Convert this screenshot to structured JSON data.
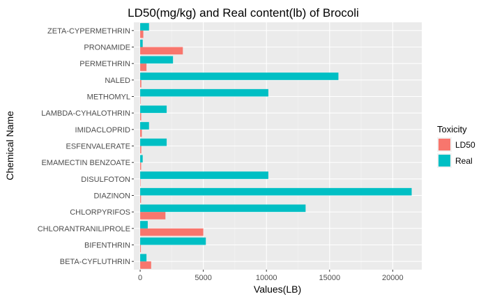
{
  "chart_data": {
    "type": "bar",
    "orientation": "horizontal",
    "title": "LD50(mg/kg) and Real content(lb) of Brocoli",
    "xlabel": "Values(LB)",
    "ylabel": "Chemical Name",
    "xlim": [
      -500,
      22300
    ],
    "xticks": [
      0,
      5000,
      10000,
      15000,
      20000
    ],
    "categories": [
      "BETA-CYFLUTHRIN",
      "BIFENTHRIN",
      "CHLORANTRANILIPROLE",
      "CHLORPYRIFOS",
      "DIAZINON",
      "DISULFOTON",
      "EMAMECTIN BENZOATE",
      "ESFENVALERATE",
      "IMIDACLOPRID",
      "LAMBDA-CYHALOTHRIN",
      "METHOMYL",
      "NALED",
      "PERMETHRIN",
      "PRONAMIDE",
      "ZETA-CYPERMETHRIN"
    ],
    "series": [
      {
        "name": "LD50",
        "color": "#F8766D",
        "values": [
          869,
          55,
          5000,
          2000,
          66,
          2,
          76,
          87,
          131,
          79,
          17,
          92,
          500,
          3380,
          250
        ]
      },
      {
        "name": "Real",
        "color": "#00BFC4",
        "values": [
          500,
          5200,
          600,
          13100,
          21500,
          10150,
          200,
          2100,
          700,
          2100,
          10150,
          15700,
          2600,
          200,
          700
        ]
      }
    ],
    "legend": {
      "title": "Toxicity",
      "position": "right"
    },
    "grid": true,
    "panel_background": "#EBEBEB"
  }
}
